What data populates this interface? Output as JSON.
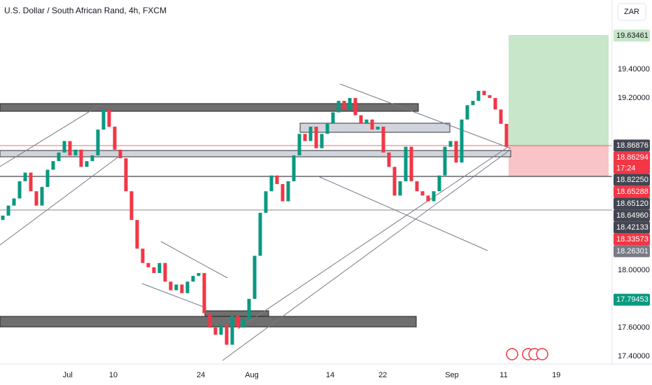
{
  "chart_data": {
    "type": "candlestick",
    "title": "U.S. Dollar / South African Rand, 4h, FXCM",
    "currency": "ZAR",
    "up_color": "#089981",
    "down_color": "#f23645",
    "open": [
      18.35,
      18.38,
      18.45,
      18.5,
      18.62,
      18.68,
      18.55,
      18.45,
      18.58,
      18.7,
      18.76,
      18.82,
      18.9,
      18.8,
      18.84,
      18.72,
      18.76,
      18.8,
      18.98,
      19.12,
      19.0,
      18.84,
      18.78,
      18.55,
      18.35,
      18.15,
      18.05,
      18.02,
      17.98,
      18.05,
      17.92,
      17.86,
      17.9,
      17.84,
      17.92,
      17.96,
      17.98,
      17.7,
      17.6,
      17.55,
      17.62,
      17.48,
      17.68,
      17.6,
      17.66,
      17.8,
      18.1,
      18.4,
      18.55,
      18.66,
      18.6,
      18.48,
      18.62,
      18.8,
      18.95,
      18.9,
      19.0,
      18.85,
      18.95,
      19.02,
      19.1,
      19.18,
      19.12,
      19.2,
      19.08,
      19.02,
      19.05,
      18.98,
      19.0,
      18.82,
      18.72,
      18.52,
      18.62,
      18.86,
      18.62,
      18.55,
      18.52,
      18.48,
      18.55,
      18.66,
      18.86,
      18.9,
      18.75,
      19.05,
      19.15,
      19.18,
      19.25,
      19.22,
      19.2,
      19.12,
      19.02
    ],
    "close": [
      18.38,
      18.45,
      18.5,
      18.62,
      18.68,
      18.55,
      18.45,
      18.58,
      18.7,
      18.76,
      18.82,
      18.9,
      18.8,
      18.84,
      18.72,
      18.76,
      18.8,
      18.98,
      19.12,
      19.0,
      18.84,
      18.78,
      18.55,
      18.35,
      18.15,
      18.05,
      18.02,
      17.98,
      18.05,
      17.92,
      17.86,
      17.9,
      17.84,
      17.92,
      17.96,
      17.98,
      17.7,
      17.6,
      17.55,
      17.62,
      17.48,
      17.68,
      17.6,
      17.66,
      17.8,
      18.1,
      18.4,
      18.55,
      18.66,
      18.6,
      18.48,
      18.62,
      18.8,
      18.95,
      18.9,
      19.0,
      18.85,
      18.95,
      19.02,
      19.1,
      19.18,
      19.12,
      19.2,
      19.08,
      19.02,
      19.05,
      18.98,
      19.0,
      18.82,
      18.72,
      18.52,
      18.62,
      18.86,
      18.62,
      18.55,
      18.52,
      18.48,
      18.55,
      18.66,
      18.86,
      18.9,
      18.75,
      19.05,
      19.15,
      19.18,
      19.25,
      19.22,
      19.2,
      19.12,
      19.02,
      18.86
    ],
    "xlim": [
      -0.5,
      108.875
    ],
    "xticks": [
      {
        "value": 11.6,
        "label": "Jul"
      },
      {
        "value": 19.75,
        "label": "10"
      },
      {
        "value": 35.4,
        "label": "24"
      },
      {
        "value": 44.5,
        "label": "Aug"
      },
      {
        "value": 58.5,
        "label": "14"
      },
      {
        "value": 67.9,
        "label": "22"
      },
      {
        "value": 80.25,
        "label": "Sep"
      },
      {
        "value": 89.5,
        "label": "11"
      },
      {
        "value": 98.9,
        "label": "19"
      }
    ],
    "ylim": [
      17.346,
      19.883
    ],
    "yticks": [
      {
        "value": 19.4,
        "label": "19.40000"
      },
      {
        "value": 19.2,
        "label": "19.20000"
      },
      {
        "value": 18.0,
        "label": "18.00000"
      },
      {
        "value": 17.6,
        "label": "17.60000"
      },
      {
        "value": 17.4,
        "label": "17.40000"
      }
    ],
    "price_labels": [
      {
        "value": 19.63461,
        "label": "19.63461",
        "color": "#c8e6c9",
        "text_color": "#131722"
      },
      {
        "value": 18.86876,
        "label": "18.86876",
        "color": "#434651"
      },
      {
        "value": 18.86294,
        "label": "18.86294",
        "color": "#f23645",
        "timer": "17:24"
      },
      {
        "value": 18.8225,
        "label": "18.82250",
        "color": "#434651"
      },
      {
        "value": 18.65288,
        "label": "18.65288",
        "color": "#f23645"
      },
      {
        "value": 18.6512,
        "label": "18.65120",
        "color": "#434651"
      },
      {
        "value": 18.6496,
        "label": "18.64960",
        "color": "#434651"
      },
      {
        "value": 18.42133,
        "label": "18.42133",
        "color": "#434651"
      },
      {
        "value": 18.33573,
        "label": "18.33573",
        "color": "#f23645"
      },
      {
        "value": 18.26301,
        "label": "18.26301",
        "color": "#787b86"
      },
      {
        "value": 17.79453,
        "label": "17.79453",
        "color": "#089981"
      }
    ]
  }
}
